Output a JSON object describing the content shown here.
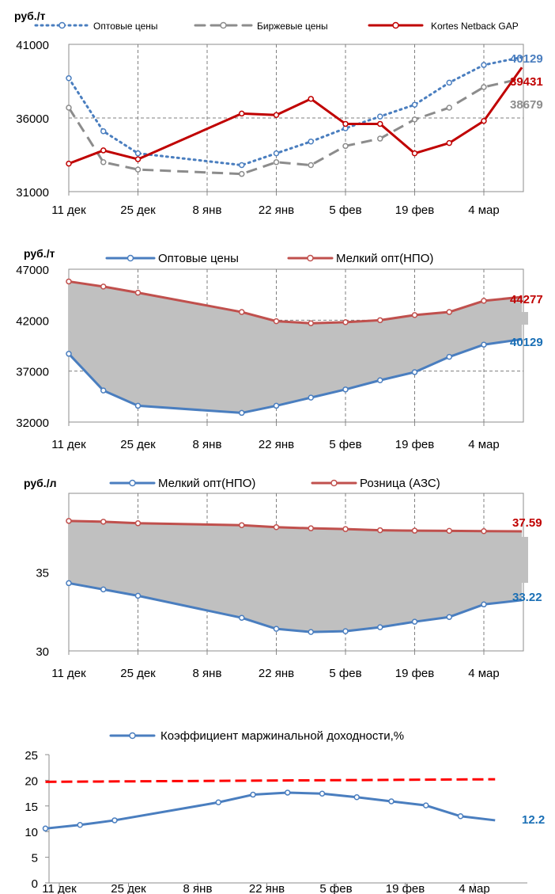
{
  "chart_data": [
    {
      "type": "line",
      "ylabel": "руб./т",
      "ylim": [
        31000,
        41000
      ],
      "y_ticks": [
        "31000",
        "36000",
        "41000"
      ],
      "categories": [
        "11 дек",
        "25 дек",
        "8 янв",
        "22 янв",
        "5 фев",
        "19 фев",
        "4 мар"
      ],
      "grid": true,
      "legend_position": "top",
      "series": [
        {
          "name": "Оптовые цены",
          "color": "#4a7ebf",
          "style": "dotted",
          "x": [
            0,
            0.5,
            1,
            2.5,
            3,
            3.5,
            4,
            4.5,
            5,
            5.5,
            6,
            6.55
          ],
          "y": [
            38700,
            35100,
            33600,
            32800,
            33600,
            34400,
            35300,
            36100,
            36900,
            38400,
            39600,
            40129
          ],
          "end_label": "40129"
        },
        {
          "name": "Биржевые цены",
          "color": "#8c8c8c",
          "style": "dashed",
          "x": [
            0,
            0.5,
            1,
            2.5,
            3,
            3.5,
            4,
            4.5,
            5,
            5.5,
            6,
            6.55
          ],
          "y": [
            36700,
            33000,
            32500,
            32200,
            33000,
            32800,
            34100,
            34600,
            35900,
            36700,
            38100,
            38679
          ],
          "end_label": "38679"
        },
        {
          "name": "Kortes Netback GAP",
          "color": "#c00000",
          "style": "solid",
          "x": [
            0,
            0.5,
            1,
            2.5,
            3,
            3.5,
            4,
            4.5,
            5,
            5.5,
            6,
            6.55
          ],
          "y": [
            32900,
            33800,
            33200,
            36300,
            36200,
            37300,
            35600,
            35600,
            33600,
            34300,
            35800,
            39431
          ],
          "end_label": "39431"
        }
      ]
    },
    {
      "type": "area",
      "ylabel": "руб./т",
      "ylim": [
        32000,
        47000
      ],
      "y_ticks": [
        "32000",
        "37000",
        "42000",
        "47000"
      ],
      "categories": [
        "11 дек",
        "25 дек",
        "8 янв",
        "22 янв",
        "5 фев",
        "19 фев",
        "4 мар"
      ],
      "grid": true,
      "legend_position": "top",
      "series": [
        {
          "name": "Оптовые цены",
          "color": "#4a7ebf",
          "x": [
            0,
            0.5,
            1,
            2.5,
            3,
            3.5,
            4,
            4.5,
            5,
            5.5,
            6,
            6.55
          ],
          "y": [
            38700,
            35100,
            33600,
            32900,
            33600,
            34400,
            35200,
            36100,
            36900,
            38400,
            39600,
            40129
          ],
          "end_label": "40129"
        },
        {
          "name": "Мелкий опт(НПО)",
          "color": "#c0504d",
          "x": [
            0,
            0.5,
            1,
            2.5,
            3,
            3.5,
            4,
            4.5,
            5,
            5.5,
            6,
            6.55
          ],
          "y": [
            45800,
            45300,
            44700,
            42800,
            41900,
            41700,
            41800,
            42000,
            42500,
            42800,
            43900,
            44277
          ],
          "end_label": "44277"
        }
      ]
    },
    {
      "type": "area",
      "ylabel": "руб./л",
      "ylim": [
        30,
        40
      ],
      "y_ticks": [
        "30",
        "35"
      ],
      "categories": [
        "11 дек",
        "25 дек",
        "8 янв",
        "22 янв",
        "5 фев",
        "19 фев",
        "4 мар"
      ],
      "grid": true,
      "legend_position": "top",
      "series": [
        {
          "name": "Мелкий опт(НПО)",
          "color": "#4a7ebf",
          "x": [
            0,
            0.5,
            1,
            2.5,
            3,
            3.5,
            4,
            4.5,
            5,
            5.5,
            6,
            6.55
          ],
          "y": [
            34.3,
            33.9,
            33.5,
            32.1,
            31.4,
            31.2,
            31.25,
            31.5,
            31.85,
            32.15,
            32.95,
            33.22
          ],
          "end_label": "33.22"
        },
        {
          "name": "Розница (АЗС)",
          "color": "#c0504d",
          "x": [
            0,
            0.5,
            1,
            2.5,
            3,
            3.5,
            4,
            4.5,
            5,
            5.5,
            6,
            6.55
          ],
          "y": [
            38.25,
            38.2,
            38.1,
            37.98,
            37.85,
            37.78,
            37.73,
            37.66,
            37.63,
            37.62,
            37.6,
            37.59
          ],
          "end_label": "37.59"
        }
      ]
    },
    {
      "type": "line",
      "ylim": [
        0,
        25
      ],
      "y_ticks": [
        "0",
        "5",
        "10",
        "15",
        "20",
        "25"
      ],
      "categories": [
        "11 дек",
        "25 дек",
        "8 янв",
        "22 янв",
        "5 фев",
        "19 фев",
        "4 мар"
      ],
      "grid": false,
      "legend_position": "top",
      "series": [
        {
          "name": "Коэффициент маржинальной доходности,%",
          "color": "#4a7ebf",
          "x": [
            -0.2,
            0.3,
            0.8,
            2.3,
            2.8,
            3.3,
            3.8,
            4.3,
            4.8,
            5.3,
            5.8,
            6.3
          ],
          "y": [
            10.6,
            11.3,
            12.2,
            15.7,
            17.2,
            17.6,
            17.4,
            16.7,
            15.9,
            15.1,
            13.0,
            12.2
          ],
          "end_label": "12.2"
        },
        {
          "color": "#ff0000",
          "style": "dashed",
          "x": [
            -0.2,
            6.3
          ],
          "y": [
            19.7,
            20.2
          ]
        }
      ]
    }
  ]
}
